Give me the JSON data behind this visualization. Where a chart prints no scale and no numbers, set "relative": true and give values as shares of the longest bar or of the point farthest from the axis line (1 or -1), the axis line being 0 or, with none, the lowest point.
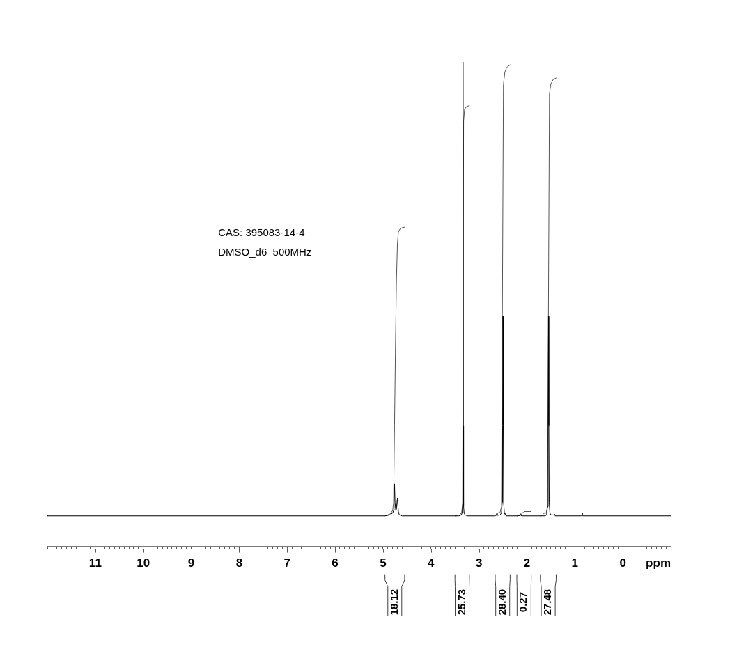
{
  "chart_data": {
    "type": "line",
    "relative": true,
    "xlabel": "ppm",
    "legend": false,
    "marker": "none",
    "line_style": "solid",
    "xlim": [
      12,
      -1
    ],
    "xticks": [
      {
        "value": 12,
        "label": null
      },
      {
        "value": 11.9,
        "label": null
      },
      {
        "value": 11.8,
        "label": null
      },
      {
        "value": 11.7,
        "label": null
      },
      {
        "value": 11.6,
        "label": null
      },
      {
        "value": 11.5,
        "label": null
      },
      {
        "value": 11.4,
        "label": null
      },
      {
        "value": 11.3,
        "label": null
      },
      {
        "value": 11.2,
        "label": null
      },
      {
        "value": 11.1,
        "label": null
      },
      11,
      {
        "value": 10.9,
        "label": null
      },
      {
        "value": 10.8,
        "label": null
      },
      {
        "value": 10.7,
        "label": null
      },
      {
        "value": 10.6,
        "label": null
      },
      {
        "value": 10.5,
        "label": null
      },
      {
        "value": 10.4,
        "label": null
      },
      {
        "value": 10.3,
        "label": null
      },
      {
        "value": 10.2,
        "label": null
      },
      {
        "value": 10.1,
        "label": null
      },
      10,
      {
        "value": 9.9,
        "label": null
      },
      {
        "value": 9.8,
        "label": null
      },
      {
        "value": 9.7,
        "label": null
      },
      {
        "value": 9.6,
        "label": null
      },
      {
        "value": 9.5,
        "label": null
      },
      {
        "value": 9.4,
        "label": null
      },
      {
        "value": 9.3,
        "label": null
      },
      {
        "value": 9.2,
        "label": null
      },
      {
        "value": 9.1,
        "label": null
      },
      9,
      {
        "value": 8.9,
        "label": null
      },
      {
        "value": 8.8,
        "label": null
      },
      {
        "value": 8.7,
        "label": null
      },
      {
        "value": 8.6,
        "label": null
      },
      {
        "value": 8.5,
        "label": null
      },
      {
        "value": 8.4,
        "label": null
      },
      {
        "value": 8.3,
        "label": null
      },
      {
        "value": 8.2,
        "label": null
      },
      {
        "value": 8.1,
        "label": null
      },
      8,
      {
        "value": 7.9,
        "label": null
      },
      {
        "value": 7.8,
        "label": null
      },
      {
        "value": 7.7,
        "label": null
      },
      {
        "value": 7.6,
        "label": null
      },
      {
        "value": 7.5,
        "label": null
      },
      {
        "value": 7.4,
        "label": null
      },
      {
        "value": 7.3,
        "label": null
      },
      {
        "value": 7.2,
        "label": null
      },
      {
        "value": 7.1,
        "label": null
      },
      7,
      {
        "value": 6.9,
        "label": null
      },
      {
        "value": 6.8,
        "label": null
      },
      {
        "value": 6.7,
        "label": null
      },
      {
        "value": 6.6,
        "label": null
      },
      {
        "value": 6.5,
        "label": null
      },
      {
        "value": 6.4,
        "label": null
      },
      {
        "value": 6.3,
        "label": null
      },
      {
        "value": 6.2,
        "label": null
      },
      {
        "value": 6.1,
        "label": null
      },
      6,
      {
        "value": 5.9,
        "label": null
      },
      {
        "value": 5.8,
        "label": null
      },
      {
        "value": 5.7,
        "label": null
      },
      {
        "value": 5.6,
        "label": null
      },
      {
        "value": 5.5,
        "label": null
      },
      {
        "value": 5.4,
        "label": null
      },
      {
        "value": 5.3,
        "label": null
      },
      {
        "value": 5.2,
        "label": null
      },
      {
        "value": 5.1,
        "label": null
      },
      5,
      {
        "value": 4.9,
        "label": null
      },
      {
        "value": 4.8,
        "label": null
      },
      {
        "value": 4.7,
        "label": null
      },
      {
        "value": 4.6,
        "label": null
      },
      {
        "value": 4.5,
        "label": null
      },
      {
        "value": 4.4,
        "label": null
      },
      {
        "value": 4.3,
        "label": null
      },
      {
        "value": 4.2,
        "label": null
      },
      {
        "value": 4.1,
        "label": null
      },
      4,
      {
        "value": 3.9,
        "label": null
      },
      {
        "value": 3.8,
        "label": null
      },
      {
        "value": 3.7,
        "label": null
      },
      {
        "value": 3.6,
        "label": null
      },
      {
        "value": 3.5,
        "label": null
      },
      {
        "value": 3.4,
        "label": null
      },
      {
        "value": 3.3,
        "label": null
      },
      {
        "value": 3.2,
        "label": null
      },
      {
        "value": 3.1,
        "label": null
      },
      3,
      {
        "value": 2.9,
        "label": null
      },
      {
        "value": 2.8,
        "label": null
      },
      {
        "value": 2.7,
        "label": null
      },
      {
        "value": 2.6,
        "label": null
      },
      {
        "value": 2.5,
        "label": null
      },
      {
        "value": 2.4,
        "label": null
      },
      {
        "value": 2.3,
        "label": null
      },
      {
        "value": 2.2,
        "label": null
      },
      {
        "value": 2.1,
        "label": null
      },
      2,
      {
        "value": 1.9,
        "label": null
      },
      {
        "value": 1.8,
        "label": null
      },
      {
        "value": 1.7,
        "label": null
      },
      {
        "value": 1.6,
        "label": null
      },
      {
        "value": 1.5,
        "label": null
      },
      {
        "value": 1.4,
        "label": null
      },
      {
        "value": 1.3,
        "label": null
      },
      {
        "value": 1.2,
        "label": null
      },
      {
        "value": 1.1,
        "label": null
      },
      1,
      {
        "value": 0.9,
        "label": null
      },
      {
        "value": 0.8,
        "label": null
      },
      {
        "value": 0.7,
        "label": null
      },
      {
        "value": 0.6,
        "label": null
      },
      {
        "value": 0.5,
        "label": null
      },
      {
        "value": 0.4,
        "label": null
      },
      {
        "value": 0.3,
        "label": null
      },
      {
        "value": 0.2,
        "label": null
      },
      {
        "value": 0.1,
        "label": null
      },
      0,
      {
        "value": -0.1,
        "label": null
      },
      {
        "value": -0.2,
        "label": null
      },
      {
        "value": -0.3,
        "label": null
      },
      {
        "value": -0.4,
        "label": null
      },
      {
        "value": -0.5,
        "label": null
      },
      {
        "value": -0.6,
        "label": null
      },
      {
        "value": -0.7,
        "label": null
      },
      {
        "value": -0.8,
        "label": null
      },
      {
        "value": -0.9,
        "label": null
      },
      {
        "value": -1,
        "label": null
      }
    ],
    "series": [
      {
        "color": "#000000",
        "x": [
          12,
          4.96,
          4.85,
          4.8,
          4.78,
          4.77,
          4.76,
          4.75,
          4.735,
          4.72,
          4.705,
          4.7,
          4.695,
          4.68,
          4.66,
          4.6,
          3.42,
          3.37,
          3.35,
          3.34,
          3.335,
          3.33,
          3.325,
          3.32,
          3.31,
          3.29,
          3.24,
          2.68,
          2.64,
          2.625,
          2.61,
          2.56,
          2.53,
          2.515,
          2.507,
          2.5,
          2.493,
          2.485,
          2.47,
          2.455,
          2.445,
          2.43,
          2.2,
          2.13,
          2.12,
          2.11,
          1.62,
          1.59,
          1.57,
          1.557,
          1.55,
          1.543,
          1.535,
          1.52,
          1.5,
          1.44,
          1.425,
          1.41,
          0.87,
          0.855,
          0.845,
          0.835,
          -1
        ],
        "values": [
          0.063,
          0.063,
          0.065,
          0.069,
          0.074,
          0.091,
          0.129,
          0.091,
          0.074,
          0.077,
          0.096,
          0.1,
          0.096,
          0.072,
          0.065,
          0.063,
          0.063,
          0.065,
          0.069,
          0.082,
          0.25,
          1,
          0.25,
          0.082,
          0.069,
          0.065,
          0.063,
          0.063,
          0.065,
          0.069,
          0.064,
          0.065,
          0.069,
          0.091,
          0.25,
          0.475,
          0.25,
          0.091,
          0.069,
          0.066,
          0.068,
          0.063,
          0.063,
          0.064,
          0.066,
          0.063,
          0.063,
          0.065,
          0.082,
          0.25,
          0.475,
          0.25,
          0.091,
          0.069,
          0.065,
          0.065,
          0.067,
          0.063,
          0.063,
          0.064,
          0.069,
          0.063,
          0.063
        ]
      },
      {
        "color": "#555555",
        "x": [
          4.96,
          4.85,
          4.8,
          4.78,
          4.76,
          4.74,
          4.72,
          4.7,
          4.68,
          4.65,
          4.6,
          4.55
        ],
        "values": [
          0.063,
          0.067,
          0.074,
          0.091,
          0.25,
          0.419,
          0.55,
          0.625,
          0.649,
          0.655,
          0.658,
          0.659
        ]
      },
      {
        "color": "#555555",
        "x": [
          3.5,
          3.4,
          3.36,
          3.34,
          3.32,
          3.3,
          3.26,
          3.2
        ],
        "values": [
          0.063,
          0.065,
          0.07,
          0.091,
          0.878,
          0.902,
          0.908,
          0.91
        ]
      },
      {
        "color": "#555555",
        "x": [
          2.66,
          2.625,
          2.61,
          2.56,
          2.53,
          2.49,
          2.46,
          2.42,
          2.35
        ],
        "values": [
          0.063,
          0.065,
          0.069,
          0.07,
          0.082,
          0.953,
          0.979,
          0.989,
          0.994
        ]
      },
      {
        "color": "#555555",
        "x": [
          2.21,
          2.14,
          2.12,
          2.07,
          2.05,
          1.91
        ],
        "values": [
          0.063,
          0.064,
          0.069,
          0.07,
          0.072,
          0.072
        ]
      },
      {
        "color": "#555555",
        "x": [
          1.72,
          1.67,
          1.655,
          1.6,
          1.57,
          1.53,
          1.5,
          1.45,
          1.39
        ],
        "values": [
          0.063,
          0.065,
          0.068,
          0.069,
          0.082,
          0.934,
          0.955,
          0.964,
          0.967
        ]
      }
    ],
    "annotations": [
      "CAS: 395083-14-4",
      "DMSO_d6  500MHz",
      "18.12",
      "25.73",
      "28.40",
      "0.27",
      "27.48"
    ]
  }
}
